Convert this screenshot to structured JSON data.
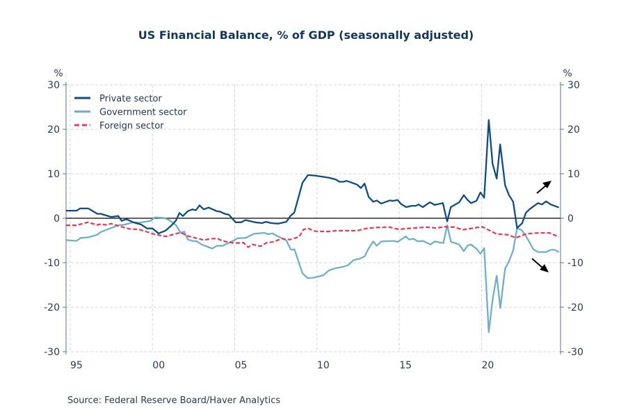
{
  "chart_data": {
    "type": "line",
    "title": "US Financial Balance, % of GDP (seasonally adjusted)",
    "ylabel_left": "%",
    "ylabel_right": "%",
    "ylim": [
      -30,
      30
    ],
    "xlim": [
      1994.75,
      2024.8
    ],
    "yticks": [
      30,
      20,
      10,
      0,
      -10,
      -20,
      -30
    ],
    "xticks": [
      {
        "year": 1995,
        "label": "95"
      },
      {
        "year": 2000,
        "label": "00"
      },
      {
        "year": 2005,
        "label": "05"
      },
      {
        "year": 2010,
        "label": "10"
      },
      {
        "year": 2015,
        "label": "15"
      },
      {
        "year": 2020,
        "label": "20"
      }
    ],
    "grid": true,
    "legend_position": "top-left",
    "source": "Source:  Federal Reserve Board/Haver Analytics",
    "annotations": [
      "arrow-up-right near private sector end",
      "arrow-down-right near government sector end"
    ],
    "series": [
      {
        "name": "Private sector",
        "color": "#0f4c81",
        "dash": false,
        "x": [
          1994.75,
          1995.4,
          1995.6,
          1996.1,
          1996.65,
          1996.86,
          1997.49,
          1997.92,
          1998.13,
          1998.41,
          1998.9,
          1999.31,
          1999.68,
          2000.0,
          2000.37,
          2000.79,
          2001.16,
          2001.43,
          2001.64,
          2001.85,
          2002.15,
          2002.43,
          2002.64,
          2002.86,
          2003.12,
          2003.41,
          2003.91,
          2004.1,
          2004.39,
          2004.64,
          2005.06,
          2005.39,
          2005.66,
          2006.23,
          2006.66,
          2006.9,
          2007.22,
          2007.64,
          2008.14,
          2008.4,
          2008.62,
          2009.12,
          2009.45,
          2009.88,
          2010.73,
          2011.15,
          2011.36,
          2011.6,
          2011.79,
          2012.42,
          2012.67,
          2012.89,
          2013.14,
          2013.42,
          2013.63,
          2013.9,
          2014.41,
          2014.62,
          2014.9,
          2015.11,
          2015.42,
          2015.75,
          2016.0,
          2016.17,
          2016.43,
          2016.86,
          2017.16,
          2017.65,
          2017.91,
          2018.13,
          2018.64,
          2018.92,
          2019.13,
          2019.36,
          2019.69,
          2019.93,
          2020.16,
          2020.44,
          2020.67,
          2020.92,
          2021.13,
          2021.43,
          2021.67,
          2021.92,
          2022.16,
          2022.47,
          2022.69,
          2022.94,
          2023.43,
          2023.67,
          2023.92,
          2024.21,
          2024.7
        ],
        "y": [
          1.7,
          1.7,
          2.2,
          2.2,
          1.0,
          1.0,
          0.3,
          0.5,
          -0.6,
          -0.2,
          -1.0,
          -1.4,
          -2.3,
          -2.3,
          -3.4,
          -2.8,
          -1.6,
          -0.5,
          1.2,
          0.5,
          1.6,
          2.0,
          1.8,
          2.9,
          2.0,
          2.4,
          1.6,
          1.5,
          1.0,
          0.8,
          -0.9,
          -0.9,
          -0.4,
          -0.9,
          -1.1,
          -0.8,
          -1.1,
          -1.2,
          -0.8,
          0.6,
          1.3,
          8.0,
          9.7,
          9.6,
          9.1,
          8.7,
          8.2,
          8.2,
          8.4,
          7.6,
          6.8,
          7.8,
          4.8,
          3.7,
          4.0,
          3.3,
          4.0,
          3.9,
          4.1,
          3.2,
          2.5,
          2.8,
          2.8,
          3.1,
          2.5,
          3.6,
          3.0,
          3.4,
          -0.7,
          2.5,
          3.6,
          5.2,
          4.2,
          3.4,
          3.9,
          5.8,
          4.6,
          22.1,
          12.2,
          8.9,
          16.6,
          7.4,
          5.2,
          3.7,
          -2.2,
          -1.1,
          1.2,
          2.1,
          3.4,
          3.1,
          3.8,
          3.1,
          2.4
        ]
      },
      {
        "name": "Government sector",
        "color": "#6fb0c8",
        "dash": false,
        "x": [
          1994.75,
          1995.38,
          1995.66,
          1996.09,
          1996.65,
          1996.86,
          1997.49,
          1997.92,
          1998.34,
          1998.84,
          1999.19,
          1999.89,
          2000.15,
          2000.67,
          2001.02,
          2001.44,
          2001.72,
          2001.93,
          2002.15,
          2002.43,
          2002.71,
          2002.99,
          2003.63,
          2003.91,
          2004.26,
          2004.89,
          2005.18,
          2005.67,
          2006.16,
          2006.8,
          2007.05,
          2007.29,
          2007.64,
          2008.14,
          2008.42,
          2008.63,
          2009.12,
          2009.45,
          2009.88,
          2010.39,
          2010.74,
          2011.17,
          2011.59,
          2011.87,
          2012.22,
          2012.58,
          2012.89,
          2013.14,
          2013.42,
          2013.63,
          2013.91,
          2014.62,
          2014.9,
          2015.39,
          2015.6,
          2015.85,
          2016.13,
          2016.43,
          2016.9,
          2017.16,
          2017.68,
          2017.91,
          2018.14,
          2018.64,
          2018.92,
          2019.16,
          2019.37,
          2019.7,
          2019.93,
          2020.16,
          2020.44,
          2020.68,
          2020.92,
          2021.14,
          2021.43,
          2021.67,
          2021.92,
          2022.16,
          2022.44,
          2022.7,
          2023.15,
          2023.43,
          2023.92,
          2024.21,
          2024.43,
          2024.7
        ],
        "y": [
          -4.9,
          -5.1,
          -4.4,
          -4.3,
          -3.7,
          -3.1,
          -2.2,
          -1.6,
          -1.4,
          -0.9,
          -1.0,
          -0.6,
          0.2,
          0.1,
          -0.4,
          -1.6,
          -3.3,
          -3.0,
          -4.8,
          -5.1,
          -5.2,
          -5.9,
          -6.8,
          -6.2,
          -6.2,
          -5.1,
          -4.5,
          -4.4,
          -3.5,
          -3.3,
          -3.6,
          -3.4,
          -4.1,
          -5.0,
          -7.1,
          -7.0,
          -12.4,
          -13.5,
          -13.3,
          -12.8,
          -11.7,
          -11.2,
          -10.9,
          -10.6,
          -9.4,
          -9.1,
          -8.6,
          -6.8,
          -5.2,
          -6.2,
          -5.2,
          -5.1,
          -5.3,
          -4.1,
          -4.8,
          -4.6,
          -5.2,
          -5.1,
          -5.9,
          -5.2,
          -5.6,
          -1.6,
          -5.3,
          -5.9,
          -7.4,
          -6.1,
          -5.9,
          -6.9,
          -8.0,
          -6.7,
          -25.6,
          -18.1,
          -12.9,
          -20.2,
          -11.3,
          -9.7,
          -7.2,
          -2.2,
          -2.7,
          -4.0,
          -7.0,
          -7.6,
          -7.6,
          -7.1,
          -7.1,
          -7.6
        ]
      },
      {
        "name": "Foreign sector",
        "color": "#e0405a",
        "dash": true,
        "x": [
          1994.75,
          1995.38,
          1996.06,
          1996.65,
          1996.86,
          1997.21,
          1997.49,
          1997.99,
          1998.62,
          1999.19,
          2000.1,
          2000.81,
          2001.72,
          2002.15,
          2003.13,
          2003.55,
          2003.96,
          2004.26,
          2004.97,
          2005.53,
          2005.81,
          2006.09,
          2006.59,
          2006.94,
          2007.36,
          2007.85,
          2008.35,
          2008.91,
          2009.19,
          2009.47,
          2009.88,
          2010.67,
          2011.17,
          2012.43,
          2013.0,
          2013.56,
          2014.41,
          2014.97,
          2015.54,
          2016.66,
          2017.23,
          2017.79,
          2018.35,
          2018.85,
          2020.04,
          2020.89,
          2021.59,
          2022.09,
          2022.72,
          2023.43,
          2024.13,
          2024.7
        ],
        "y": [
          -1.6,
          -1.6,
          -0.9,
          -1.5,
          -1.3,
          -1.5,
          -1.2,
          -1.8,
          -2.4,
          -2.5,
          -3.6,
          -4.1,
          -3.2,
          -4.0,
          -4.9,
          -4.6,
          -4.6,
          -5.1,
          -5.6,
          -5.5,
          -6.5,
          -5.9,
          -6.3,
          -5.5,
          -5.3,
          -4.6,
          -4.8,
          -4.2,
          -2.5,
          -2.3,
          -2.9,
          -3.0,
          -2.8,
          -2.8,
          -2.3,
          -2.1,
          -2.0,
          -2.5,
          -2.3,
          -2.0,
          -2.2,
          -1.9,
          -2.0,
          -2.6,
          -1.9,
          -3.5,
          -3.7,
          -4.4,
          -3.5,
          -3.3,
          -3.3,
          -4.2
        ]
      }
    ]
  }
}
